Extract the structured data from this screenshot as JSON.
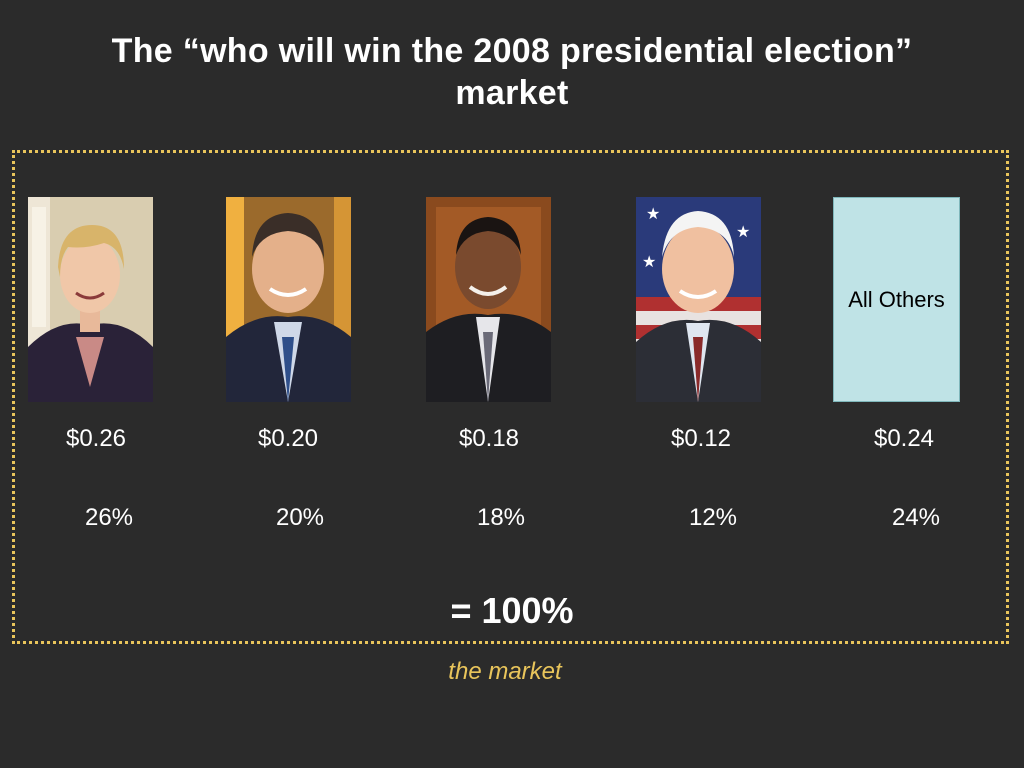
{
  "slide": {
    "title_line1": "The “who will win the 2008 presidential election”",
    "title_line2": "market",
    "total": "= 100%",
    "caption": "the market",
    "accent_color": "#e9c55b",
    "others_color": "#bfe3e6"
  },
  "candidates": [
    {
      "photo": "candidate-1-portrait",
      "price": "$0.26",
      "percent": "26%"
    },
    {
      "photo": "candidate-2-portrait",
      "price": "$0.20",
      "percent": "20%"
    },
    {
      "photo": "candidate-3-portrait",
      "price": "$0.18",
      "percent": "18%"
    },
    {
      "photo": "candidate-4-portrait",
      "price": "$0.12",
      "percent": "12%"
    },
    {
      "label": "All Others",
      "price": "$0.24",
      "percent": "24%"
    }
  ]
}
